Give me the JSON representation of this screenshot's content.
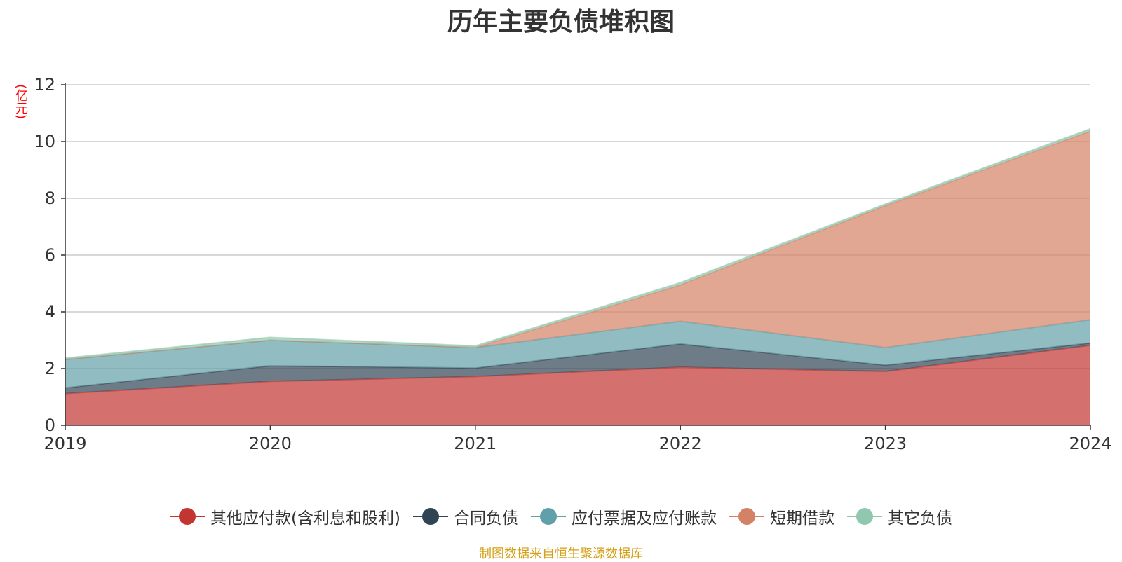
{
  "title": "历年主要负债堆积图",
  "unit_label": "(亿元)",
  "source": "制图数据来自恒生聚源数据库",
  "chart_data": {
    "type": "area",
    "stacked": true,
    "categories": [
      "2019",
      "2020",
      "2021",
      "2022",
      "2023",
      "2024"
    ],
    "ylim": [
      0,
      12
    ],
    "yticks": [
      0,
      2,
      4,
      6,
      8,
      10,
      12
    ],
    "grid": true,
    "legend_position": "bottom",
    "series": [
      {
        "name": "其他应付款(含利息和股利)",
        "color": "#c23531",
        "values": [
          1.12,
          1.55,
          1.72,
          2.05,
          1.9,
          2.82
        ]
      },
      {
        "name": "合同负债",
        "color": "#2f4554",
        "values": [
          0.2,
          0.55,
          0.3,
          0.82,
          0.22,
          0.08
        ]
      },
      {
        "name": "应付票据及应付账款",
        "color": "#61a0a8",
        "values": [
          1.0,
          0.9,
          0.72,
          0.8,
          0.62,
          0.82
        ]
      },
      {
        "name": "短期借款",
        "color": "#d48265",
        "values": [
          0.0,
          0.0,
          0.0,
          1.28,
          5.0,
          6.65
        ]
      },
      {
        "name": "其它负债",
        "color": "#91c7ae",
        "values": [
          0.05,
          0.1,
          0.06,
          0.08,
          0.06,
          0.08
        ]
      }
    ]
  }
}
